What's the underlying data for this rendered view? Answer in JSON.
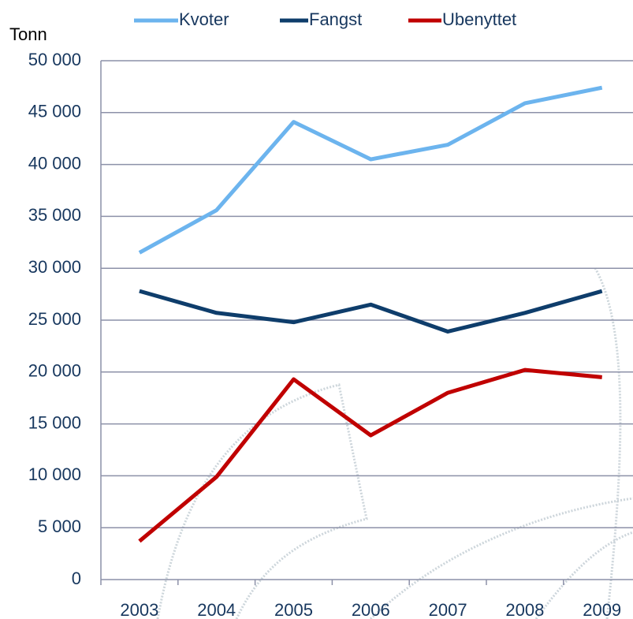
{
  "chart_data": {
    "type": "line",
    "y_axis_label": "Tonn",
    "categories": [
      "2003",
      "2004",
      "2005",
      "2006",
      "2007",
      "2008",
      "2009"
    ],
    "series": [
      {
        "name": "Kvoter",
        "color": "#6cb4ee",
        "values": [
          31500,
          35600,
          44100,
          40500,
          41900,
          45900,
          47400
        ]
      },
      {
        "name": "Fangst",
        "color": "#0e3d6b",
        "values": [
          27800,
          25700,
          24800,
          26500,
          23900,
          25700,
          27800
        ]
      },
      {
        "name": "Ubenyttet",
        "color": "#c00000",
        "values": [
          3700,
          9900,
          19300,
          13900,
          18000,
          20200,
          19500
        ]
      }
    ],
    "ylim": [
      0,
      50000
    ],
    "yticks": [
      0,
      {
        "value": 5000,
        "label": "5 000"
      },
      {
        "value": 10000,
        "label": "10 000"
      },
      {
        "value": 15000,
        "label": "15 000"
      },
      {
        "value": 20000,
        "label": "20 000"
      },
      {
        "value": 25000,
        "label": "25 000"
      },
      {
        "value": 30000,
        "label": "30 000"
      },
      {
        "value": 35000,
        "label": "35 000"
      },
      {
        "value": 40000,
        "label": "40 000"
      },
      {
        "value": 45000,
        "label": "45 000"
      },
      {
        "value": 50000,
        "label": "50 000"
      }
    ],
    "grid": true,
    "legend": "top"
  }
}
